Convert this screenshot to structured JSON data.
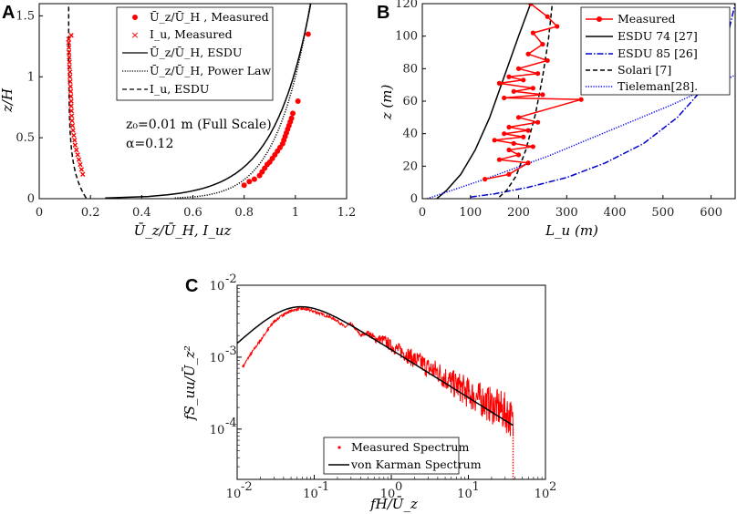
{
  "colors": {
    "measured": "#ff0000",
    "esdu": "#000000",
    "esdu85": "#0000cc",
    "tieleman": "#0000ff",
    "frame": "#000000"
  },
  "chart_data": [
    {
      "panel": "A",
      "type": "scatter",
      "xlabel": "Ū_z/Ū_H, I_uz",
      "ylabel": "z/H",
      "xlim": [
        0,
        1.2
      ],
      "ylim": [
        0,
        1.6
      ],
      "xticks": [
        "0",
        "0.2",
        "0.4",
        "0.6",
        "0.8",
        "1",
        "1.2"
      ],
      "yticks": [
        "0",
        "0.5",
        "1",
        "1.5"
      ],
      "annotations": [
        "z₀=0.01 m (Full Scale)",
        "α=0.12"
      ],
      "legend": [
        "Ū_z/Ū_H , Measured",
        "I_u, Measured",
        "Ū_z/Ū_H, ESDU",
        "Ū_z/Ū_H, Power Law",
        "I_u, ESDU"
      ],
      "series": [
        {
          "name": "Ū_z/Ū_H , Measured",
          "x": [
            0.8,
            0.82,
            0.84,
            0.86,
            0.87,
            0.88,
            0.89,
            0.9,
            0.91,
            0.92,
            0.93,
            0.94,
            0.95,
            0.955,
            0.96,
            0.965,
            0.97,
            0.975,
            0.98,
            0.985,
            0.99,
            1.01,
            1.05
          ],
          "y": [
            0.11,
            0.14,
            0.16,
            0.19,
            0.22,
            0.25,
            0.28,
            0.3,
            0.33,
            0.36,
            0.39,
            0.42,
            0.45,
            0.48,
            0.51,
            0.54,
            0.57,
            0.6,
            0.63,
            0.66,
            0.7,
            0.8,
            1.35
          ]
        },
        {
          "name": "I_u, Measured",
          "x": [
            0.17,
            0.165,
            0.16,
            0.155,
            0.15,
            0.145,
            0.14,
            0.138,
            0.135,
            0.132,
            0.13,
            0.128,
            0.127,
            0.126,
            0.125,
            0.125,
            0.124,
            0.123,
            0.122,
            0.121,
            0.12,
            0.12,
            0.118,
            0.118,
            0.117,
            0.116,
            0.116,
            0.115,
            0.115,
            0.125
          ],
          "y": [
            0.2,
            0.24,
            0.28,
            0.32,
            0.36,
            0.4,
            0.44,
            0.48,
            0.52,
            0.56,
            0.6,
            0.64,
            0.68,
            0.72,
            0.76,
            0.8,
            0.84,
            0.88,
            0.92,
            0.96,
            1.0,
            1.04,
            1.08,
            1.12,
            1.16,
            1.2,
            1.24,
            1.28,
            1.31,
            1.34
          ]
        }
      ],
      "curves": [
        {
          "name": "Ū_z/Ū_H, ESDU",
          "model": "esdu_profile",
          "x_at_top": 1.06
        },
        {
          "name": "Ū_z/Ū_H, Power Law",
          "model": "power_law",
          "alpha": 0.12
        },
        {
          "name": "I_u, ESDU",
          "model": "esdu_turbulence",
          "x_at_ground": 0.185,
          "x_at_top": 0.115
        }
      ]
    },
    {
      "panel": "B",
      "type": "line",
      "xlabel": "L_u (m)",
      "ylabel": "z (m)",
      "xlim": [
        0,
        650
      ],
      "ylim": [
        0,
        120
      ],
      "xticks": [
        "0",
        "100",
        "200",
        "300",
        "400",
        "500",
        "600"
      ],
      "yticks": [
        "0",
        "20",
        "40",
        "60",
        "80",
        "100",
        "120"
      ],
      "legend": [
        "Measured",
        "ESDU 74 [27]",
        "ESDU 85 [26]",
        "Solari [7]",
        "Tieleman[28]."
      ],
      "series": [
        {
          "name": "Measured",
          "x": [
            130,
            180,
            220,
            160,
            200,
            180,
            230,
            190,
            150,
            210,
            170,
            220,
            180,
            240,
            200,
            330,
            170,
            250,
            190,
            230,
            160,
            210,
            180,
            240,
            200,
            260,
            220,
            250,
            230,
            280,
            260,
            225
          ],
          "y": [
            12,
            15,
            22,
            24,
            27,
            30,
            32,
            34,
            36,
            38,
            40,
            42,
            44,
            47,
            50,
            61,
            62,
            64,
            66,
            68,
            71,
            73,
            75,
            77,
            80,
            85,
            89,
            95,
            102,
            106,
            112,
            120
          ]
        },
        {
          "name": "ESDU 74 [27]",
          "x": [
            30,
            50,
            80,
            110,
            140,
            170,
            200,
            225
          ],
          "y": [
            0,
            5,
            15,
            30,
            50,
            75,
            100,
            120
          ]
        },
        {
          "name": "ESDU 85 [26]",
          "x": [
            100,
            150,
            220,
            300,
            380,
            460,
            530,
            590,
            630,
            650
          ],
          "y": [
            1,
            3,
            7,
            13,
            22,
            34,
            50,
            70,
            95,
            120
          ]
        },
        {
          "name": "Solari [7]",
          "x": [
            160,
            175,
            195,
            215,
            235,
            250,
            262,
            270
          ],
          "y": [
            1,
            5,
            14,
            30,
            52,
            75,
            98,
            120
          ]
        },
        {
          "name": "Tieleman[28].",
          "x": [
            10,
            130,
            260,
            390,
            520,
            650
          ],
          "y": [
            0,
            12,
            26,
            42,
            58,
            76
          ]
        }
      ]
    },
    {
      "panel": "C",
      "type": "line",
      "xlabel": "fH/Ū_z",
      "ylabel": "fS_uu/Ū_z²",
      "xscale": "log",
      "yscale": "log",
      "xlim": [
        0.01,
        100
      ],
      "ylim": [
        2e-05,
        0.01
      ],
      "xtick_bases": [
        "10",
        "10",
        "10",
        "10",
        "10"
      ],
      "xtick_exps": [
        "-2",
        "-1",
        "0",
        "1",
        "2"
      ],
      "ytick_bases": [
        "10",
        "10",
        "10"
      ],
      "ytick_exps": [
        "-4",
        "-3",
        "-2"
      ],
      "legend": [
        "Measured Spectrum",
        "von Karman Spectrum"
      ],
      "series": [
        {
          "name": "Measured Spectrum",
          "x": [
            0.012,
            0.015,
            0.02,
            0.025,
            0.03,
            0.04,
            0.05,
            0.06,
            0.07,
            0.08,
            0.1,
            0.12,
            0.15,
            0.2,
            0.25,
            0.3,
            0.4,
            0.5,
            0.6,
            0.8,
            1,
            1.3,
            1.6,
            2,
            2.5,
            3,
            4,
            5,
            6,
            8,
            10,
            13,
            16,
            20,
            25,
            30,
            35,
            38,
            40
          ],
          "y": [
            0.00075,
            0.0011,
            0.0017,
            0.0024,
            0.0031,
            0.0039,
            0.0044,
            0.0046,
            0.0047,
            0.0046,
            0.0043,
            0.004,
            0.0037,
            0.0032,
            0.0026,
            0.0029,
            0.002,
            0.0022,
            0.0018,
            0.0017,
            0.0014,
            0.0012,
            0.00105,
            0.0009,
            0.0008,
            0.00068,
            0.0006,
            0.0005,
            0.00042,
            0.00036,
            0.0003,
            0.00026,
            0.00023,
            0.0002,
            0.00018,
            0.00016,
            0.00014,
            0.0001,
            2e-05
          ]
        },
        {
          "name": "von Karman Spectrum",
          "model": "von_karman",
          "x_range": [
            0.008,
            38
          ]
        }
      ]
    }
  ]
}
